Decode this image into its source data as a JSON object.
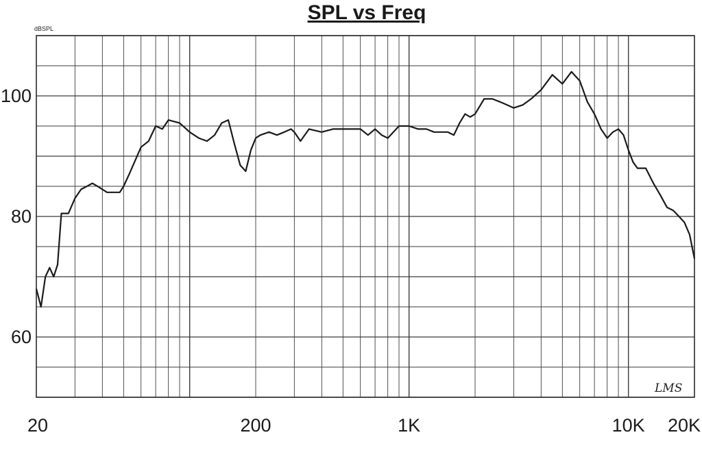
{
  "chart_data": {
    "type": "line",
    "title": "SPL vs Freq",
    "ylabel": "dBSPL",
    "xlabel": "",
    "x_scale": "log",
    "xlim": [
      20,
      20000
    ],
    "ylim": [
      50,
      110
    ],
    "grid": true,
    "x_tick_labels": [
      {
        "value": 20,
        "label": "20"
      },
      {
        "value": 200,
        "label": "200"
      },
      {
        "value": 1000,
        "label": "1K"
      },
      {
        "value": 10000,
        "label": "10K"
      },
      {
        "value": 20000,
        "label": "20K"
      }
    ],
    "y_tick_labels": [
      {
        "value": 100,
        "label": "100"
      },
      {
        "value": 80,
        "label": "80"
      },
      {
        "value": 60,
        "label": "60"
      }
    ],
    "watermark": "LMS",
    "series": [
      {
        "color": "#1a1a1a",
        "x": [
          20,
          21,
          22,
          23,
          24,
          25,
          26,
          27,
          28,
          30,
          32,
          34,
          36,
          38,
          40,
          42,
          45,
          48,
          50,
          53,
          56,
          60,
          65,
          70,
          75,
          80,
          90,
          100,
          110,
          120,
          130,
          140,
          150,
          160,
          170,
          180,
          190,
          200,
          210,
          230,
          250,
          270,
          290,
          300,
          320,
          350,
          400,
          450,
          500,
          550,
          600,
          650,
          700,
          750,
          800,
          900,
          1000,
          1100,
          1200,
          1300,
          1400,
          1500,
          1600,
          1700,
          1800,
          1900,
          2000,
          2200,
          2400,
          2600,
          2800,
          3000,
          3300,
          3600,
          4000,
          4500,
          5000,
          5500,
          6000,
          6500,
          7000,
          7500,
          8000,
          8500,
          9000,
          9500,
          10000,
          10500,
          11000,
          12000,
          13000,
          14000,
          15000,
          16000,
          17000,
          18000,
          19000,
          20000
        ],
        "y": [
          68,
          65,
          70,
          71.5,
          70,
          72,
          80.5,
          80.5,
          80.5,
          83,
          84.5,
          85,
          85.5,
          85,
          84.5,
          84,
          84,
          84,
          85,
          87,
          89,
          91.5,
          92.5,
          95,
          94.5,
          96,
          95.5,
          94,
          93,
          92.5,
          93.5,
          95.5,
          96,
          92,
          88.5,
          87.5,
          91,
          93,
          93.5,
          94,
          93.5,
          94,
          94.5,
          94,
          92.5,
          94.5,
          94,
          94.5,
          94.5,
          94.5,
          94.5,
          93.5,
          94.5,
          93.5,
          93,
          95,
          95,
          94.5,
          94.5,
          94,
          94,
          94,
          93.5,
          95.5,
          97,
          96.5,
          97,
          99.5,
          99.5,
          99,
          98.5,
          98,
          98.5,
          99.5,
          101,
          103.5,
          102,
          104,
          102.5,
          99,
          97,
          94.5,
          93,
          94,
          94.5,
          93.5,
          91,
          89,
          88,
          88,
          85.5,
          83.5,
          81.5,
          81,
          80,
          79,
          77,
          73
        ]
      }
    ]
  }
}
